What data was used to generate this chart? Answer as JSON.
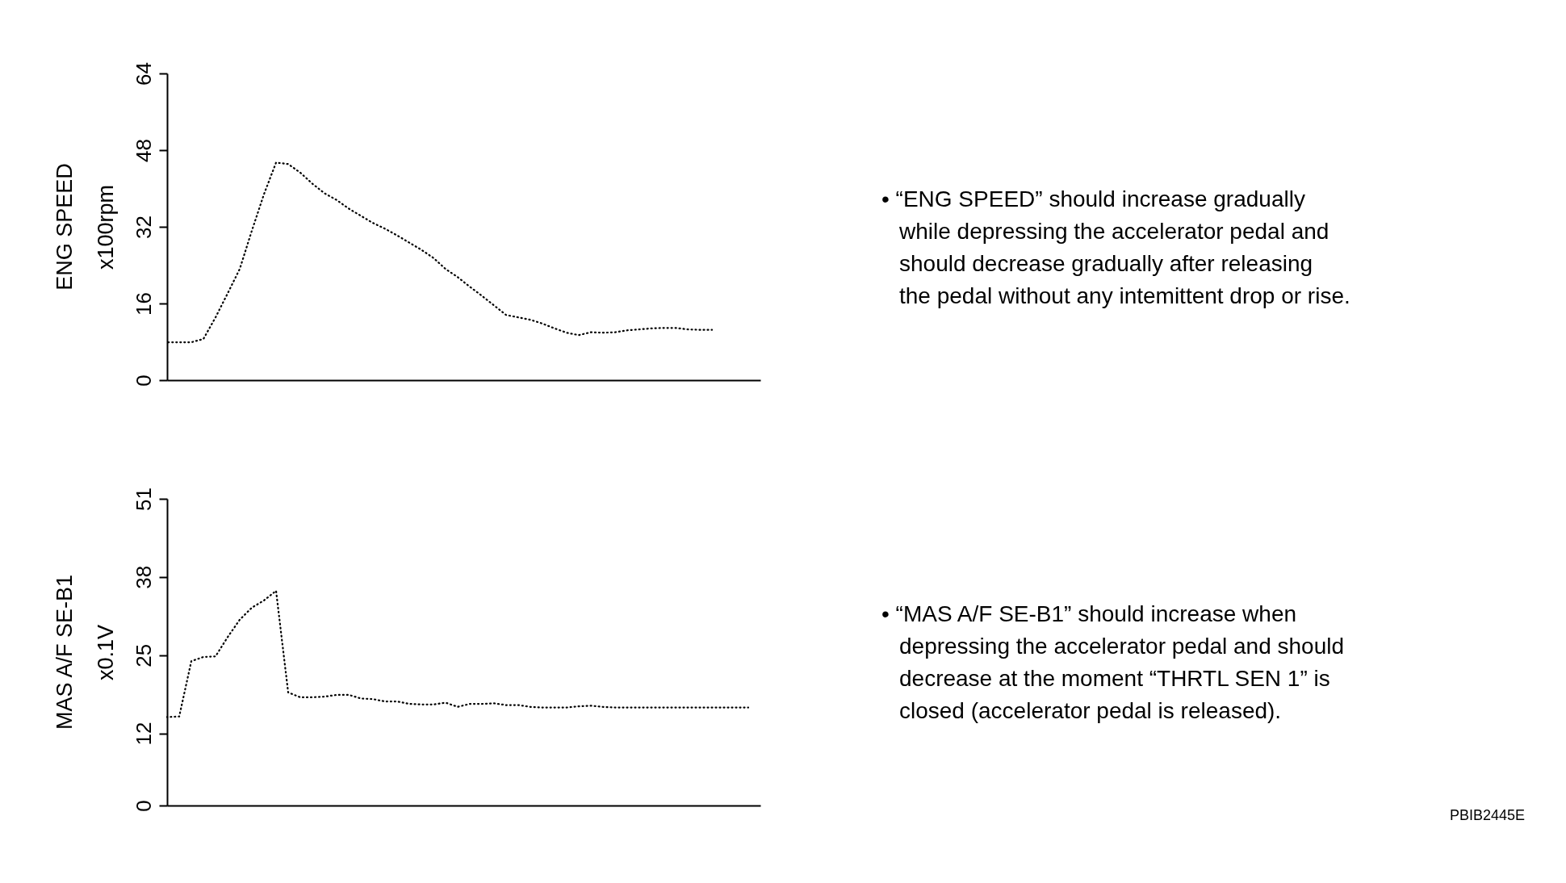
{
  "chart_data": [
    {
      "type": "line",
      "title": "ENG SPEED",
      "ylabel": "x100rpm",
      "color": "#000000",
      "line_style": "dotted",
      "tick_labels": "y",
      "categories": [
        null,
        null,
        null,
        null,
        null,
        null,
        null,
        null,
        null,
        null,
        null,
        null,
        null,
        null,
        null,
        null,
        null,
        null,
        null,
        null,
        null,
        null,
        null,
        null,
        null,
        null,
        null,
        null,
        null,
        null,
        null,
        null,
        null,
        null,
        null,
        null,
        null,
        null,
        null,
        null,
        null,
        null,
        null,
        null,
        null,
        null,
        null,
        null,
        null,
        null
      ],
      "values": [
        7.9,
        7.9,
        7.9,
        8.6,
        13.1,
        18.1,
        23.2,
        31.2,
        38.8,
        45.4,
        45.1,
        43.3,
        41.0,
        39.0,
        37.6,
        35.8,
        34.3,
        32.8,
        31.6,
        30.2,
        28.7,
        27.2,
        25.5,
        23.2,
        21.5,
        19.5,
        17.6,
        15.6,
        13.6,
        13.1,
        12.6,
        11.8,
        10.8,
        9.9,
        9.4,
        10.0,
        9.9,
        10.0,
        10.4,
        10.6,
        10.8,
        10.9,
        10.9,
        10.6,
        10.5,
        10.5,
        null,
        null,
        null,
        null
      ],
      "ylim": [
        0,
        64
      ],
      "yticks": [
        0,
        16,
        32,
        48,
        64
      ],
      "annotations": [
        "• “ENG SPEED” should increase gradually\nwhile depressing the accelerator pedal and\nshould decrease gradually after releasing\nthe pedal without any intemittent drop or rise."
      ]
    },
    {
      "type": "line",
      "title": "MAS A/F SE-B1",
      "ylabel": "x0.1V",
      "color": "#000000",
      "line_style": "dotted",
      "tick_labels": "y",
      "categories": [
        null,
        null,
        null,
        null,
        null,
        null,
        null,
        null,
        null,
        null,
        null,
        null,
        null,
        null,
        null,
        null,
        null,
        null,
        null,
        null,
        null,
        null,
        null,
        null,
        null,
        null,
        null,
        null,
        null,
        null,
        null,
        null,
        null,
        null,
        null,
        null,
        null,
        null,
        null,
        null,
        null,
        null,
        null,
        null,
        null,
        null,
        null,
        null,
        null,
        null
      ],
      "values": [
        14.7,
        14.8,
        24.0,
        24.7,
        24.8,
        28.0,
        30.9,
        32.9,
        34.1,
        35.7,
        18.8,
        18.0,
        18.0,
        18.1,
        18.4,
        18.4,
        17.8,
        17.7,
        17.3,
        17.3,
        16.9,
        16.8,
        16.8,
        17.1,
        16.4,
        16.9,
        16.9,
        17.0,
        16.7,
        16.7,
        16.4,
        16.3,
        16.3,
        16.3,
        16.5,
        16.6,
        16.4,
        16.3,
        16.3,
        16.3,
        16.3,
        16.3,
        16.3,
        16.3,
        16.3,
        16.3,
        16.3,
        16.3,
        16.3,
        null
      ],
      "ylim": [
        0,
        51
      ],
      "yticks": [
        0,
        12,
        25,
        38,
        51
      ],
      "annotations": [
        "• “MAS A/F SE-B1” should increase when\ndepressing the accelerator pedal and should\ndecrease at the moment “THRTL SEN 1” is\nclosed (accelerator pedal is released).",
        "PBIB2445E"
      ]
    }
  ]
}
